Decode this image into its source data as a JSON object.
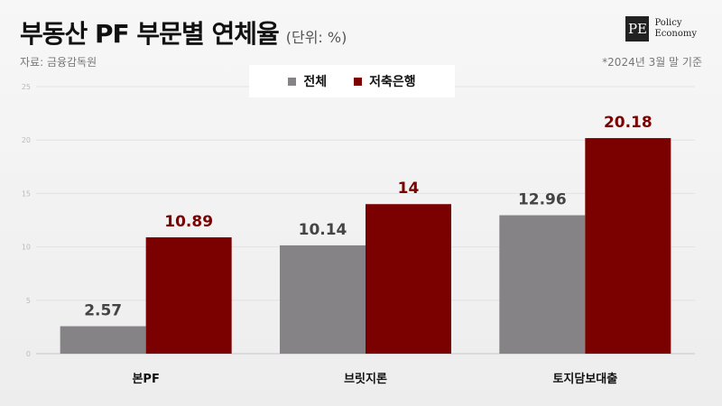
{
  "header": {
    "title": "부동산 PF 부문별 연체율",
    "unit": "(단위: %)",
    "source": "자료: 금융감독원",
    "date_note": "*2024년 3월 말 기준"
  },
  "logo": {
    "mark": "PE",
    "line1": "Policy",
    "line2": "Economy"
  },
  "colors": {
    "total": "#858385",
    "bank": "#7b0000"
  },
  "chart_data": {
    "type": "bar",
    "categories": [
      "본PF",
      "브릿지론",
      "토지담보대출"
    ],
    "series": [
      {
        "name": "전체",
        "values": [
          2.57,
          10.14,
          12.96
        ]
      },
      {
        "name": "저축은행",
        "values": [
          10.89,
          14,
          20.18
        ]
      }
    ],
    "data_labels": [
      [
        "2.57",
        "10.14",
        "12.96"
      ],
      [
        "10.89",
        "14",
        "20.18"
      ]
    ],
    "ylim": [
      0,
      25
    ],
    "yticks": [
      0,
      5,
      10,
      15,
      20,
      25
    ],
    "ytick_labels": [
      "0",
      "5",
      "10",
      "15",
      "20",
      "25"
    ],
    "grid": true,
    "legend": "top-center"
  }
}
